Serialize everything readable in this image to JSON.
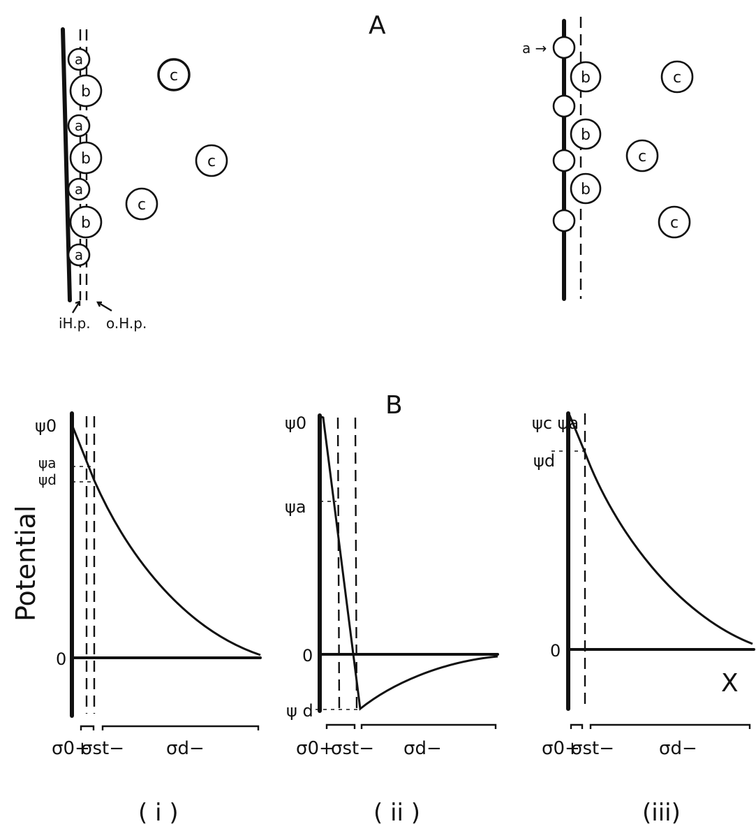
{
  "panel_a": {
    "label": "A",
    "ion_a": "a",
    "ion_b": "b",
    "ion_c": "c",
    "ihp": "iH.p.",
    "ohp": "o.H.p.",
    "arrow_label": "a →"
  },
  "panel_b": {
    "label": "B",
    "y_axis_label": "Potential",
    "x_axis_label": "X",
    "zero": "0",
    "i": {
      "caption": "( i )",
      "psi_0": "ψ0",
      "psi_a": "ψa",
      "psi_d": "ψd",
      "sigma_0": "σ0+",
      "sigma_st": "σst−",
      "sigma_d": "σd−"
    },
    "ii": {
      "caption": "( ii )",
      "psi_0": "ψ0",
      "psi_a": "ψa",
      "psi_d": "ψ d",
      "sigma_0": "σ0+",
      "sigma_st": "σst−",
      "sigma_d": "σd−"
    },
    "iii": {
      "caption": "(iii)",
      "psi_ca": "ψc ψa",
      "psi_d": "ψd",
      "sigma_0": "σ0+",
      "sigma_st": "σst−",
      "sigma_d": "σd−"
    }
  }
}
